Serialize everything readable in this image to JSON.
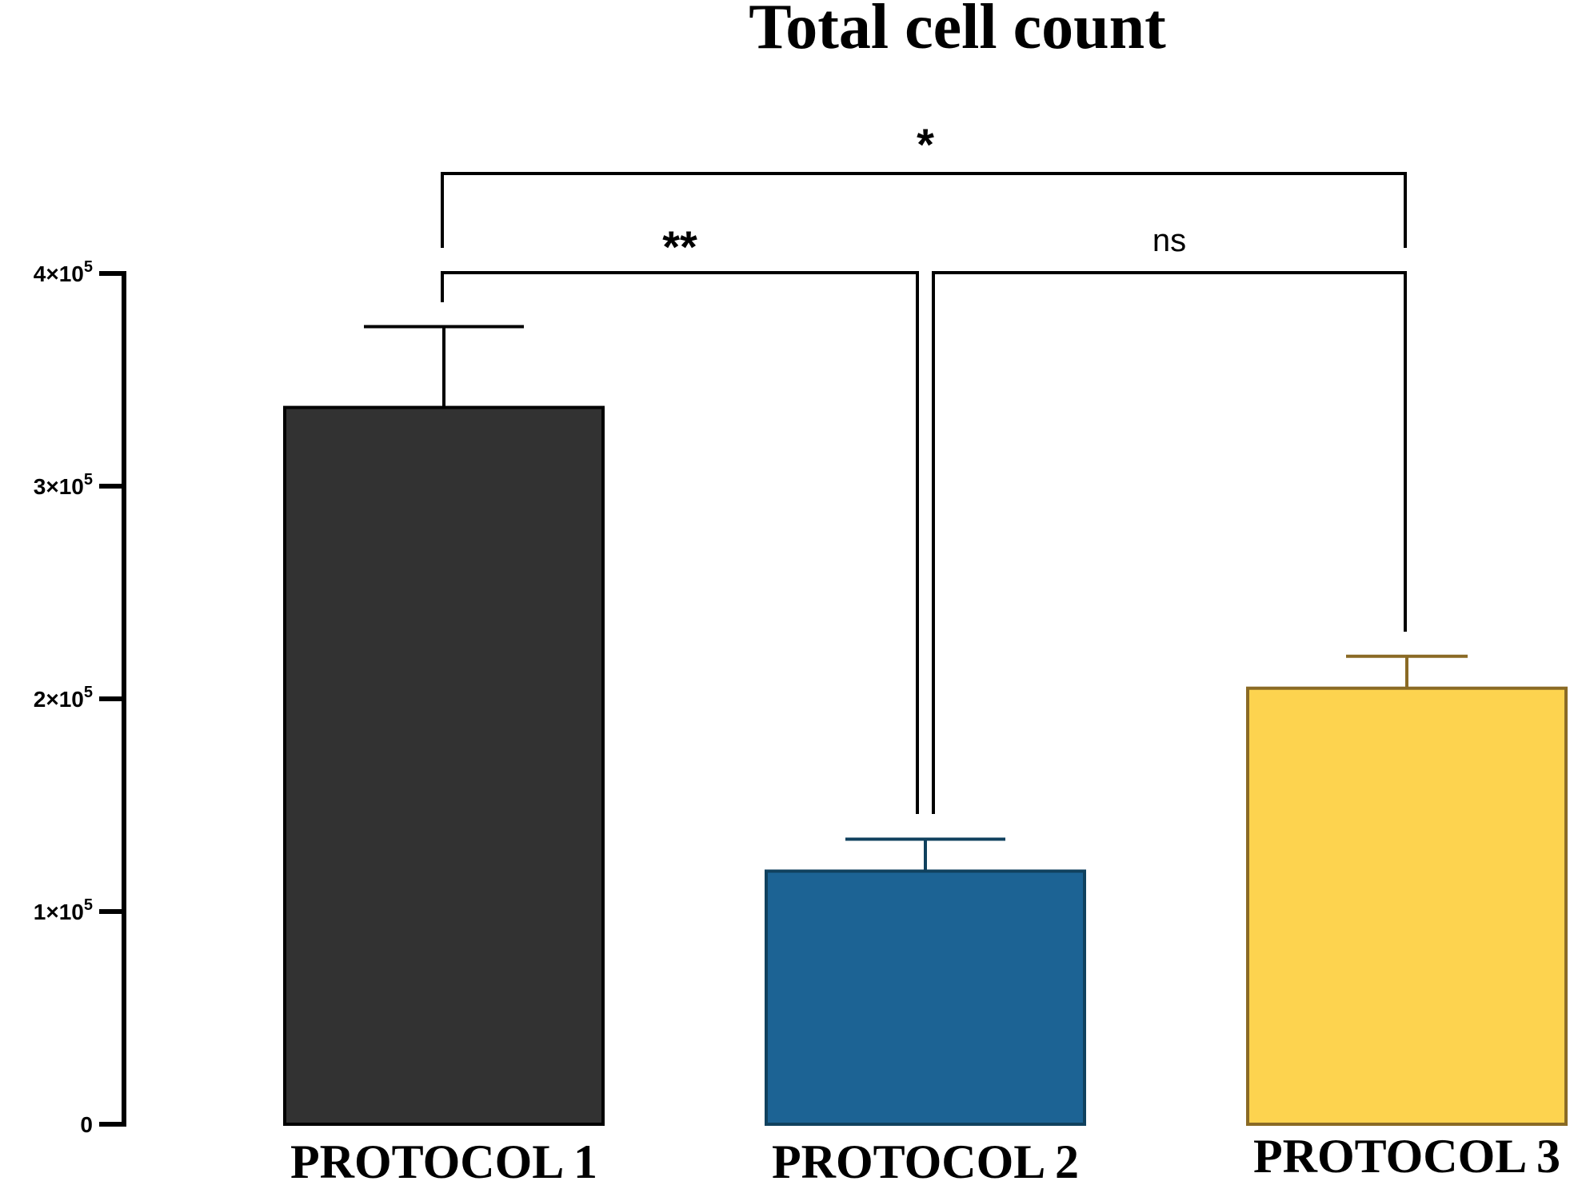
{
  "chart_data": {
    "type": "bar",
    "title": "Total cell count",
    "xlabel": "",
    "ylabel": "",
    "categories": [
      "PROTOCOL 1",
      "PROTOCOL 2",
      "PROTOCOL 3"
    ],
    "values": [
      337000,
      119000,
      205000
    ],
    "error_upper": [
      375000,
      134000,
      220000
    ],
    "ylim": [
      0,
      400000
    ],
    "yticks": [
      {
        "value": 0,
        "base": "0",
        "exp": ""
      },
      {
        "value": 100000,
        "base": "1×10",
        "exp": "5"
      },
      {
        "value": 200000,
        "base": "2×10",
        "exp": "5"
      },
      {
        "value": 300000,
        "base": "3×10",
        "exp": "5"
      },
      {
        "value": 400000,
        "base": "4×10",
        "exp": "5"
      }
    ],
    "bar_colors": [
      "#323232",
      "#1c6394",
      "#fdd34f"
    ],
    "bar_edge_colors": [
      "#000000",
      "#10415e",
      "#8a6a25"
    ],
    "significance": [
      {
        "from": 0,
        "to": 2,
        "label": "*"
      },
      {
        "from": 0,
        "to": 1,
        "label": "**"
      },
      {
        "from": 1,
        "to": 2,
        "label": "ns"
      }
    ],
    "grid": false,
    "legend": "none"
  }
}
